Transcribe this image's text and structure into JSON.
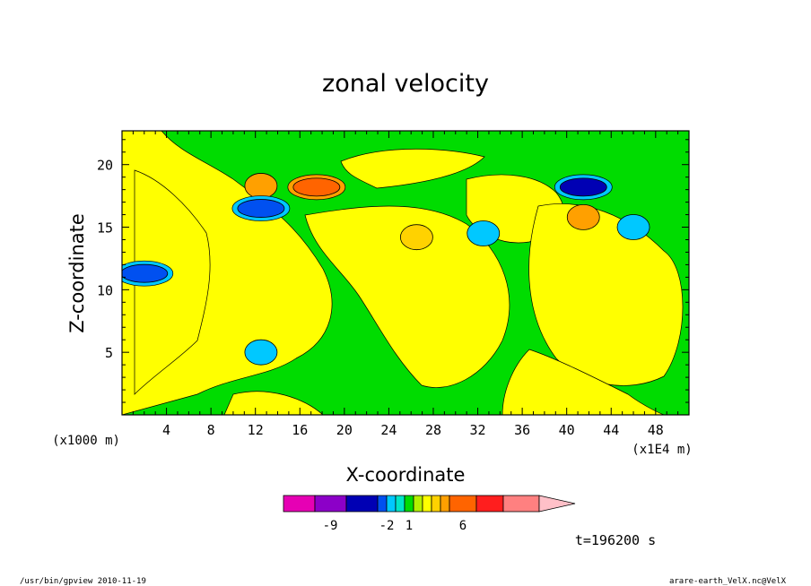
{
  "chart_data": {
    "type": "heatmap",
    "title": "zonal velocity",
    "xlabel": "X-coordinate",
    "ylabel": "Z-coordinate",
    "x_unit_label": "(x1E4 m)",
    "y_unit_label": "(x1000 m)",
    "xlim": [
      0,
      51
    ],
    "ylim": [
      0,
      22.7
    ],
    "x_ticks": [
      "4",
      "8",
      "12",
      "16",
      "20",
      "24",
      "28",
      "32",
      "36",
      "40",
      "44",
      "48"
    ],
    "y_ticks": [
      "5",
      "10",
      "15",
      "20"
    ],
    "time_label": "t=196200 s",
    "colorbar": {
      "colors": [
        "#e600b4",
        "#8c00c8",
        "#0000b4",
        "#0050f0",
        "#00c8ff",
        "#00e6c8",
        "#00dc00",
        "#b4f000",
        "#ffff00",
        "#ffd200",
        "#ffa000",
        "#ff6400",
        "#ff1e1e",
        "#ff8080",
        "#ffc0c8"
      ],
      "tick_labels": [
        "-9",
        "-2",
        "1",
        "6"
      ]
    },
    "features": [
      {
        "x": 17.5,
        "z": 18.2,
        "value": 5,
        "note": "orange maximum"
      },
      {
        "x": 12.5,
        "z": 18.3,
        "value": 4
      },
      {
        "x": 41.5,
        "z": 18.2,
        "value": -7,
        "note": "dark blue minimum"
      },
      {
        "x": 12.5,
        "z": 16.5,
        "value": -5
      },
      {
        "x": 2,
        "z": 11.3,
        "value": -5
      },
      {
        "x": 26.5,
        "z": 14.2,
        "value": 2
      },
      {
        "x": 41.5,
        "z": 15.8,
        "value": 3
      },
      {
        "x": 12.5,
        "z": 5,
        "value": -2
      },
      {
        "x": 46,
        "z": 15,
        "value": -2
      },
      {
        "x": 32.5,
        "z": 14.5,
        "value": -2
      }
    ]
  },
  "footer": {
    "left": "/usr/bin/gpview  2010-11-19",
    "right": "arare-earth_VelX.nc@VelX"
  }
}
